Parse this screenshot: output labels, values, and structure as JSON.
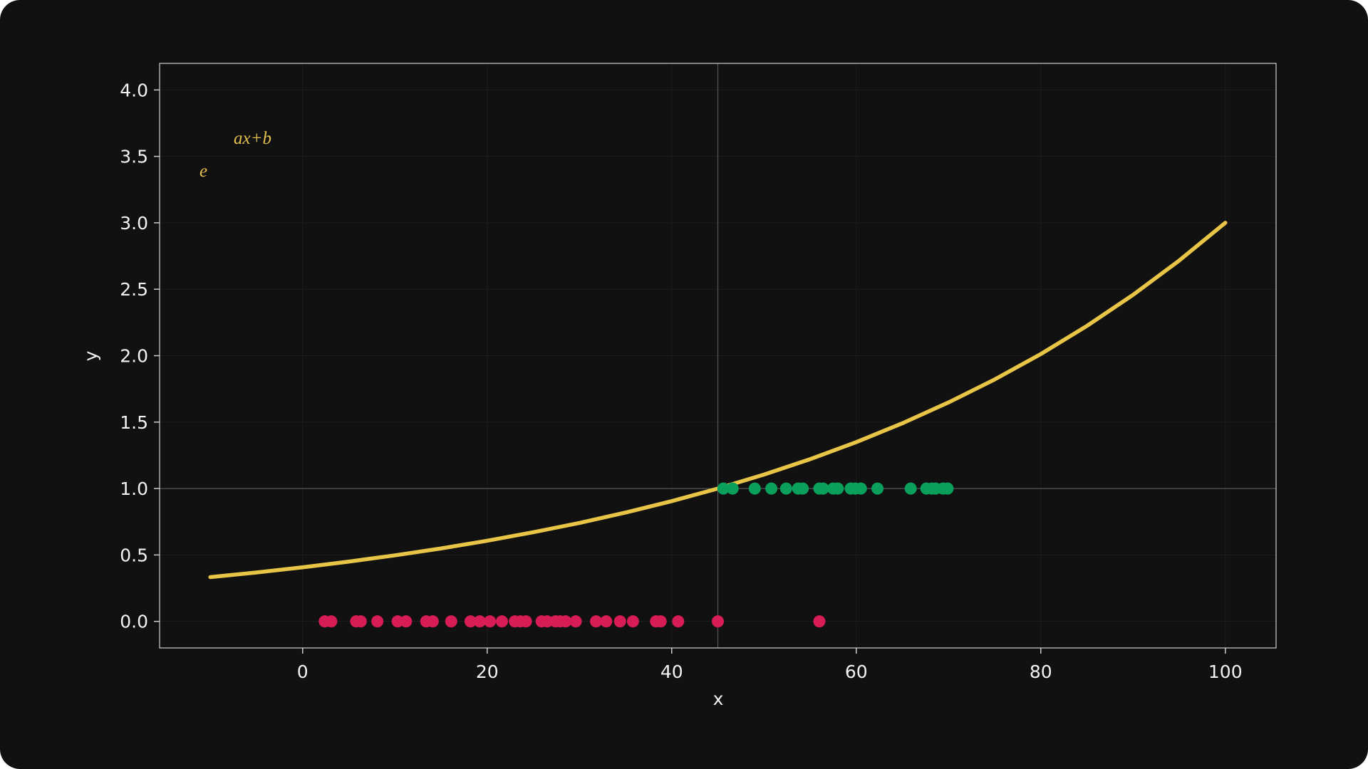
{
  "chart_data": {
    "type": "line",
    "x_label": "x",
    "y_label": "y",
    "annotation": {
      "base": "e",
      "exponent": "ax+b",
      "color": "#e3bf4c"
    },
    "xlim": [
      -15.5,
      105.5
    ],
    "ylim": [
      -0.2,
      4.2
    ],
    "xticks": [
      0,
      20,
      40,
      60,
      80,
      100
    ],
    "yticks": [
      {
        "value": 0,
        "label": "0.0"
      },
      0.5,
      {
        "value": 1,
        "label": "1.0"
      },
      1.5,
      {
        "value": 2,
        "label": "2.0"
      },
      2.5,
      {
        "value": 3,
        "label": "3.0"
      },
      3.5,
      {
        "value": 4,
        "label": "4.0"
      }
    ],
    "grid": true,
    "vline": 45,
    "hline": 1,
    "series": [
      {
        "type": "line",
        "color": "#e8c547",
        "x": [
          -10,
          -5,
          0,
          5,
          10,
          15,
          20,
          25,
          30,
          35,
          40,
          45,
          50,
          55,
          60,
          65,
          70,
          75,
          80,
          85,
          90,
          95,
          100
        ],
        "values": [
          0.333,
          0.368,
          0.407,
          0.45,
          0.497,
          0.549,
          0.607,
          0.671,
          0.741,
          0.819,
          0.905,
          1.0,
          1.105,
          1.221,
          1.349,
          1.491,
          1.648,
          1.821,
          2.012,
          2.224,
          2.458,
          2.716,
          3.0
        ]
      },
      {
        "type": "scatter",
        "color": "#d81c55",
        "x": [
          2.4,
          3.1,
          5.8,
          6.3,
          8.1,
          10.3,
          11.2,
          13.4,
          14.1,
          16.1,
          18.2,
          19.2,
          20.3,
          21.6,
          23.0,
          23.6,
          24.2,
          25.9,
          26.5,
          27.4,
          27.9,
          28.5,
          29.6,
          31.8,
          32.9,
          34.4,
          35.8,
          38.3,
          38.8,
          40.7,
          45.0,
          56.0
        ],
        "values": [
          0,
          0,
          0,
          0,
          0,
          0,
          0,
          0,
          0,
          0,
          0,
          0,
          0,
          0,
          0,
          0,
          0,
          0,
          0,
          0,
          0,
          0,
          0,
          0,
          0,
          0,
          0,
          0,
          0,
          0,
          0,
          0
        ]
      },
      {
        "type": "scatter",
        "color": "#0aa05c",
        "x": [
          45.6,
          46.6,
          49.0,
          50.8,
          52.4,
          53.7,
          54.2,
          56.0,
          56.4,
          57.5,
          58.0,
          59.4,
          59.9,
          60.5,
          62.3,
          65.9,
          67.6,
          68.2,
          68.6,
          69.4,
          69.9
        ],
        "values": [
          1,
          1,
          1,
          1,
          1,
          1,
          1,
          1,
          1,
          1,
          1,
          1,
          1,
          1,
          1,
          1,
          1,
          1,
          1,
          1,
          1
        ]
      }
    ]
  }
}
